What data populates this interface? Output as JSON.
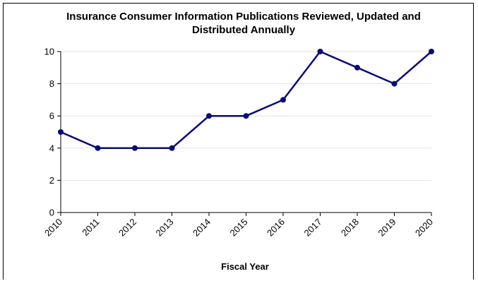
{
  "chart_data": {
    "type": "line",
    "title_lines": [
      "Insurance Consumer Information Publications Reviewed, Updated and",
      "Distributed Annually"
    ],
    "xlabel": "Fiscal Year",
    "ylabel": "",
    "categories": [
      "2010",
      "2011",
      "2012",
      "2013",
      "2014",
      "2015",
      "2016",
      "2017",
      "2018",
      "2019",
      "2020"
    ],
    "series": [
      {
        "values": [
          5,
          4,
          4,
          4,
          6,
          6,
          7,
          10,
          9,
          8,
          10
        ],
        "color": "#0a0a7a"
      }
    ],
    "ylim": [
      0,
      10
    ],
    "yticks": [
      "0",
      "2",
      "4",
      "6",
      "8",
      "10"
    ],
    "grid": true,
    "grid_color": "#e2e2e2",
    "legend": false
  }
}
